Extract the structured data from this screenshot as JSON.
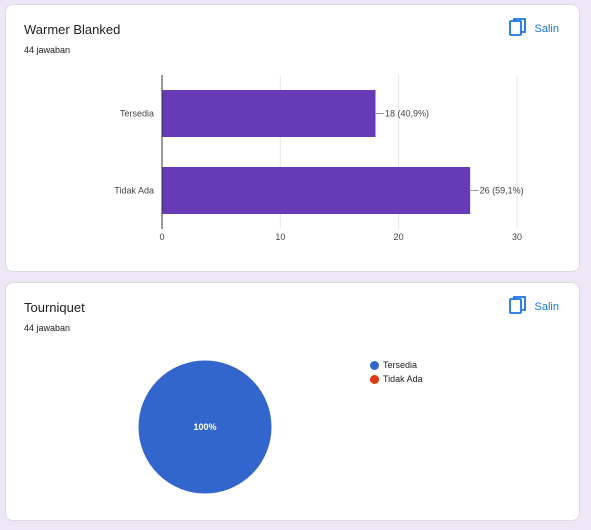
{
  "copy_label": "Salin",
  "cards": [
    {
      "title": "Warmer Blanked",
      "subtitle": "44 jawaban",
      "chart_data": {
        "type": "bar",
        "orientation": "horizontal",
        "categories": [
          "Tersedia",
          "Tidak Ada"
        ],
        "values": [
          18,
          26
        ],
        "data_labels": [
          "18 (40,9%)",
          "26 (59,1%)"
        ],
        "xlim": [
          0,
          30
        ],
        "x_ticks": [
          "0",
          "10",
          "20",
          "30"
        ],
        "grid": true,
        "color": "#673ab7"
      }
    },
    {
      "title": "Tourniquet",
      "subtitle": "44 jawaban",
      "chart_data": {
        "type": "pie",
        "labels": [
          "Tersedia",
          "Tidak Ada"
        ],
        "values": [
          100,
          0
        ],
        "slice_label": "100%",
        "colors": [
          "#3366cc",
          "#dc3912"
        ],
        "legend_position": "right"
      }
    }
  ]
}
